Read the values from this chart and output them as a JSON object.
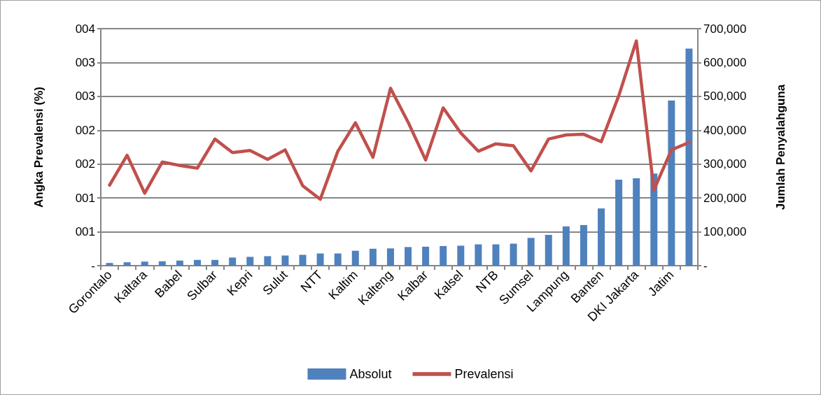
{
  "chart_data": {
    "type": "bar",
    "ylabel": "Angka Prevalensi (%)",
    "y2label": "Jumlah Penyalahguna",
    "categories": [
      "Gorontalo",
      null,
      "Kaltara",
      null,
      "Babel",
      null,
      "Sulbar",
      null,
      "Kepri",
      null,
      "Sulut",
      null,
      "NTT",
      null,
      "Kaltim",
      null,
      "Kalteng",
      null,
      "Kalbar",
      null,
      "Kalsel",
      null,
      "NTB",
      null,
      "Sumsel",
      null,
      "Lampung",
      null,
      "Banten",
      null,
      "DKI Jakarta",
      null,
      "Jatim",
      null
    ],
    "series": [
      {
        "name": "Absolut",
        "axis": "y2",
        "color": "#4f81bd",
        "values": [
          8000,
          10000,
          12000,
          13000,
          15000,
          17000,
          17000,
          24000,
          26000,
          28000,
          30000,
          32000,
          36000,
          36000,
          44000,
          50000,
          51000,
          55000,
          56000,
          58000,
          59000,
          63000,
          63000,
          65000,
          82000,
          91000,
          116000,
          120000,
          169000,
          254000,
          258000,
          272000,
          488000,
          641000
        ]
      },
      {
        "name": "Prevalensi",
        "type": "line",
        "color": "#c0504d",
        "values": [
          1.19,
          1.63,
          1.07,
          1.53,
          1.48,
          1.44,
          1.87,
          1.67,
          1.7,
          1.57,
          1.71,
          1.18,
          0.98,
          1.69,
          2.11,
          1.6,
          2.62,
          2.12,
          1.56,
          2.33,
          1.96,
          1.69,
          1.8,
          1.77,
          1.4,
          1.87,
          1.93,
          1.94,
          1.83,
          2.51,
          3.32,
          1.12,
          1.71,
          1.82
        ]
      }
    ],
    "ylim": [
      0,
      3.5
    ],
    "yticks": [
      {
        "value": 0,
        "label": "-"
      },
      {
        "value": 0.5,
        "label": "001"
      },
      {
        "value": 1,
        "label": "001"
      },
      {
        "value": 1.5,
        "label": "002"
      },
      {
        "value": 2,
        "label": "002"
      },
      {
        "value": 2.5,
        "label": "003"
      },
      {
        "value": 3,
        "label": "003"
      },
      {
        "value": 3.5,
        "label": "004"
      }
    ],
    "y2lim": [
      0,
      700000
    ],
    "y2ticks": [
      {
        "value": 0,
        "label": "-"
      },
      {
        "value": 100000,
        "label": "100,000"
      },
      {
        "value": 200000,
        "label": "200,000"
      },
      {
        "value": 300000,
        "label": "300,000"
      },
      {
        "value": 400000,
        "label": "400,000"
      },
      {
        "value": 500000,
        "label": "500,000"
      },
      {
        "value": 600000,
        "label": "600,000"
      },
      {
        "value": 700000,
        "label": "700,000"
      }
    ],
    "grid": "y",
    "legend": "bottom",
    "marker": "none",
    "line_style": "solid"
  }
}
